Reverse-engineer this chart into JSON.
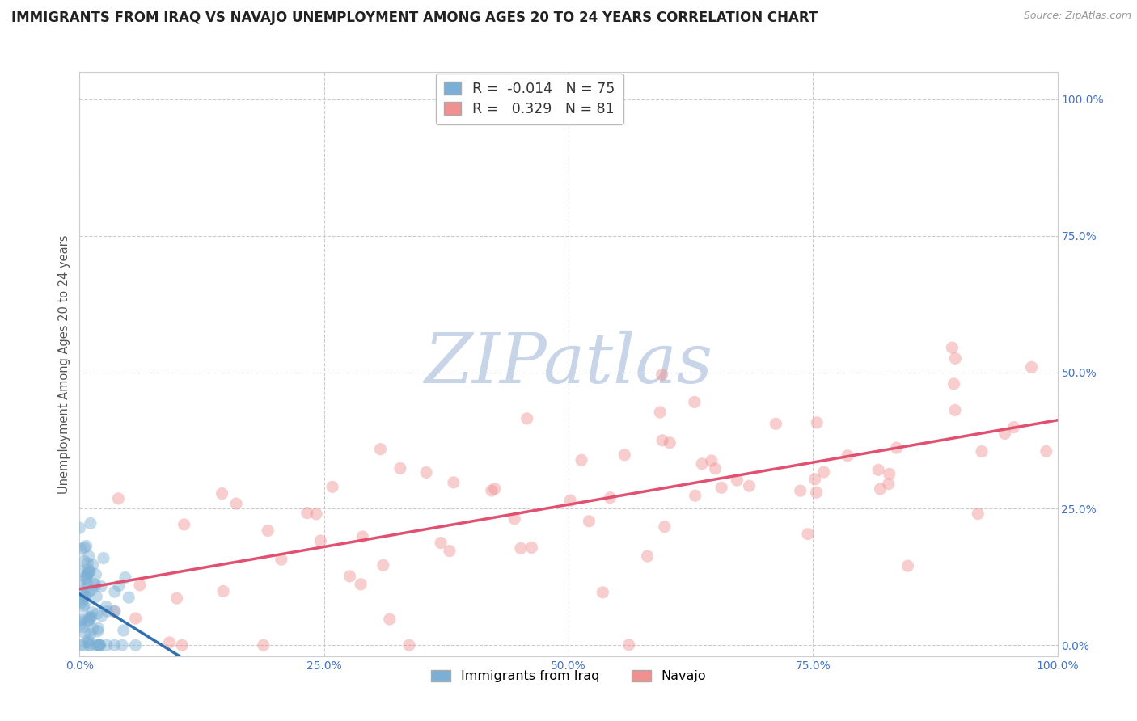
{
  "title": "IMMIGRANTS FROM IRAQ VS NAVAJO UNEMPLOYMENT AMONG AGES 20 TO 24 YEARS CORRELATION CHART",
  "source": "Source: ZipAtlas.com",
  "ylabel": "Unemployment Among Ages 20 to 24 years",
  "series": [
    {
      "name": "Immigrants from Iraq",
      "color": "#7bafd4",
      "line_color": "#3070b0",
      "R": -0.014,
      "N": 75
    },
    {
      "name": "Navajo",
      "color": "#f09090",
      "line_color": "#e05070",
      "R": 0.329,
      "N": 81
    }
  ],
  "xlim": [
    0.0,
    1.0
  ],
  "ylim": [
    -0.02,
    1.05
  ],
  "xticks": [
    0.0,
    0.25,
    0.5,
    0.75,
    1.0
  ],
  "xtick_labels": [
    "0.0%",
    "25.0%",
    "50.0%",
    "75.0%",
    "100.0%"
  ],
  "yticks": [
    0.0,
    0.25,
    0.5,
    0.75,
    1.0
  ],
  "ytick_labels": [
    "0.0%",
    "25.0%",
    "50.0%",
    "75.0%",
    "100.0%"
  ],
  "background_color": "#ffffff",
  "grid_color": "#cccccc",
  "watermark_color": "#c8d4e8",
  "title_fontsize": 12,
  "label_fontsize": 10.5,
  "tick_fontsize": 10,
  "dot_size": 120,
  "dot_alpha": 0.45,
  "legend_R_color": "#cc0000",
  "legend_N_color": "#3399ff",
  "tick_color": "#4472c4"
}
